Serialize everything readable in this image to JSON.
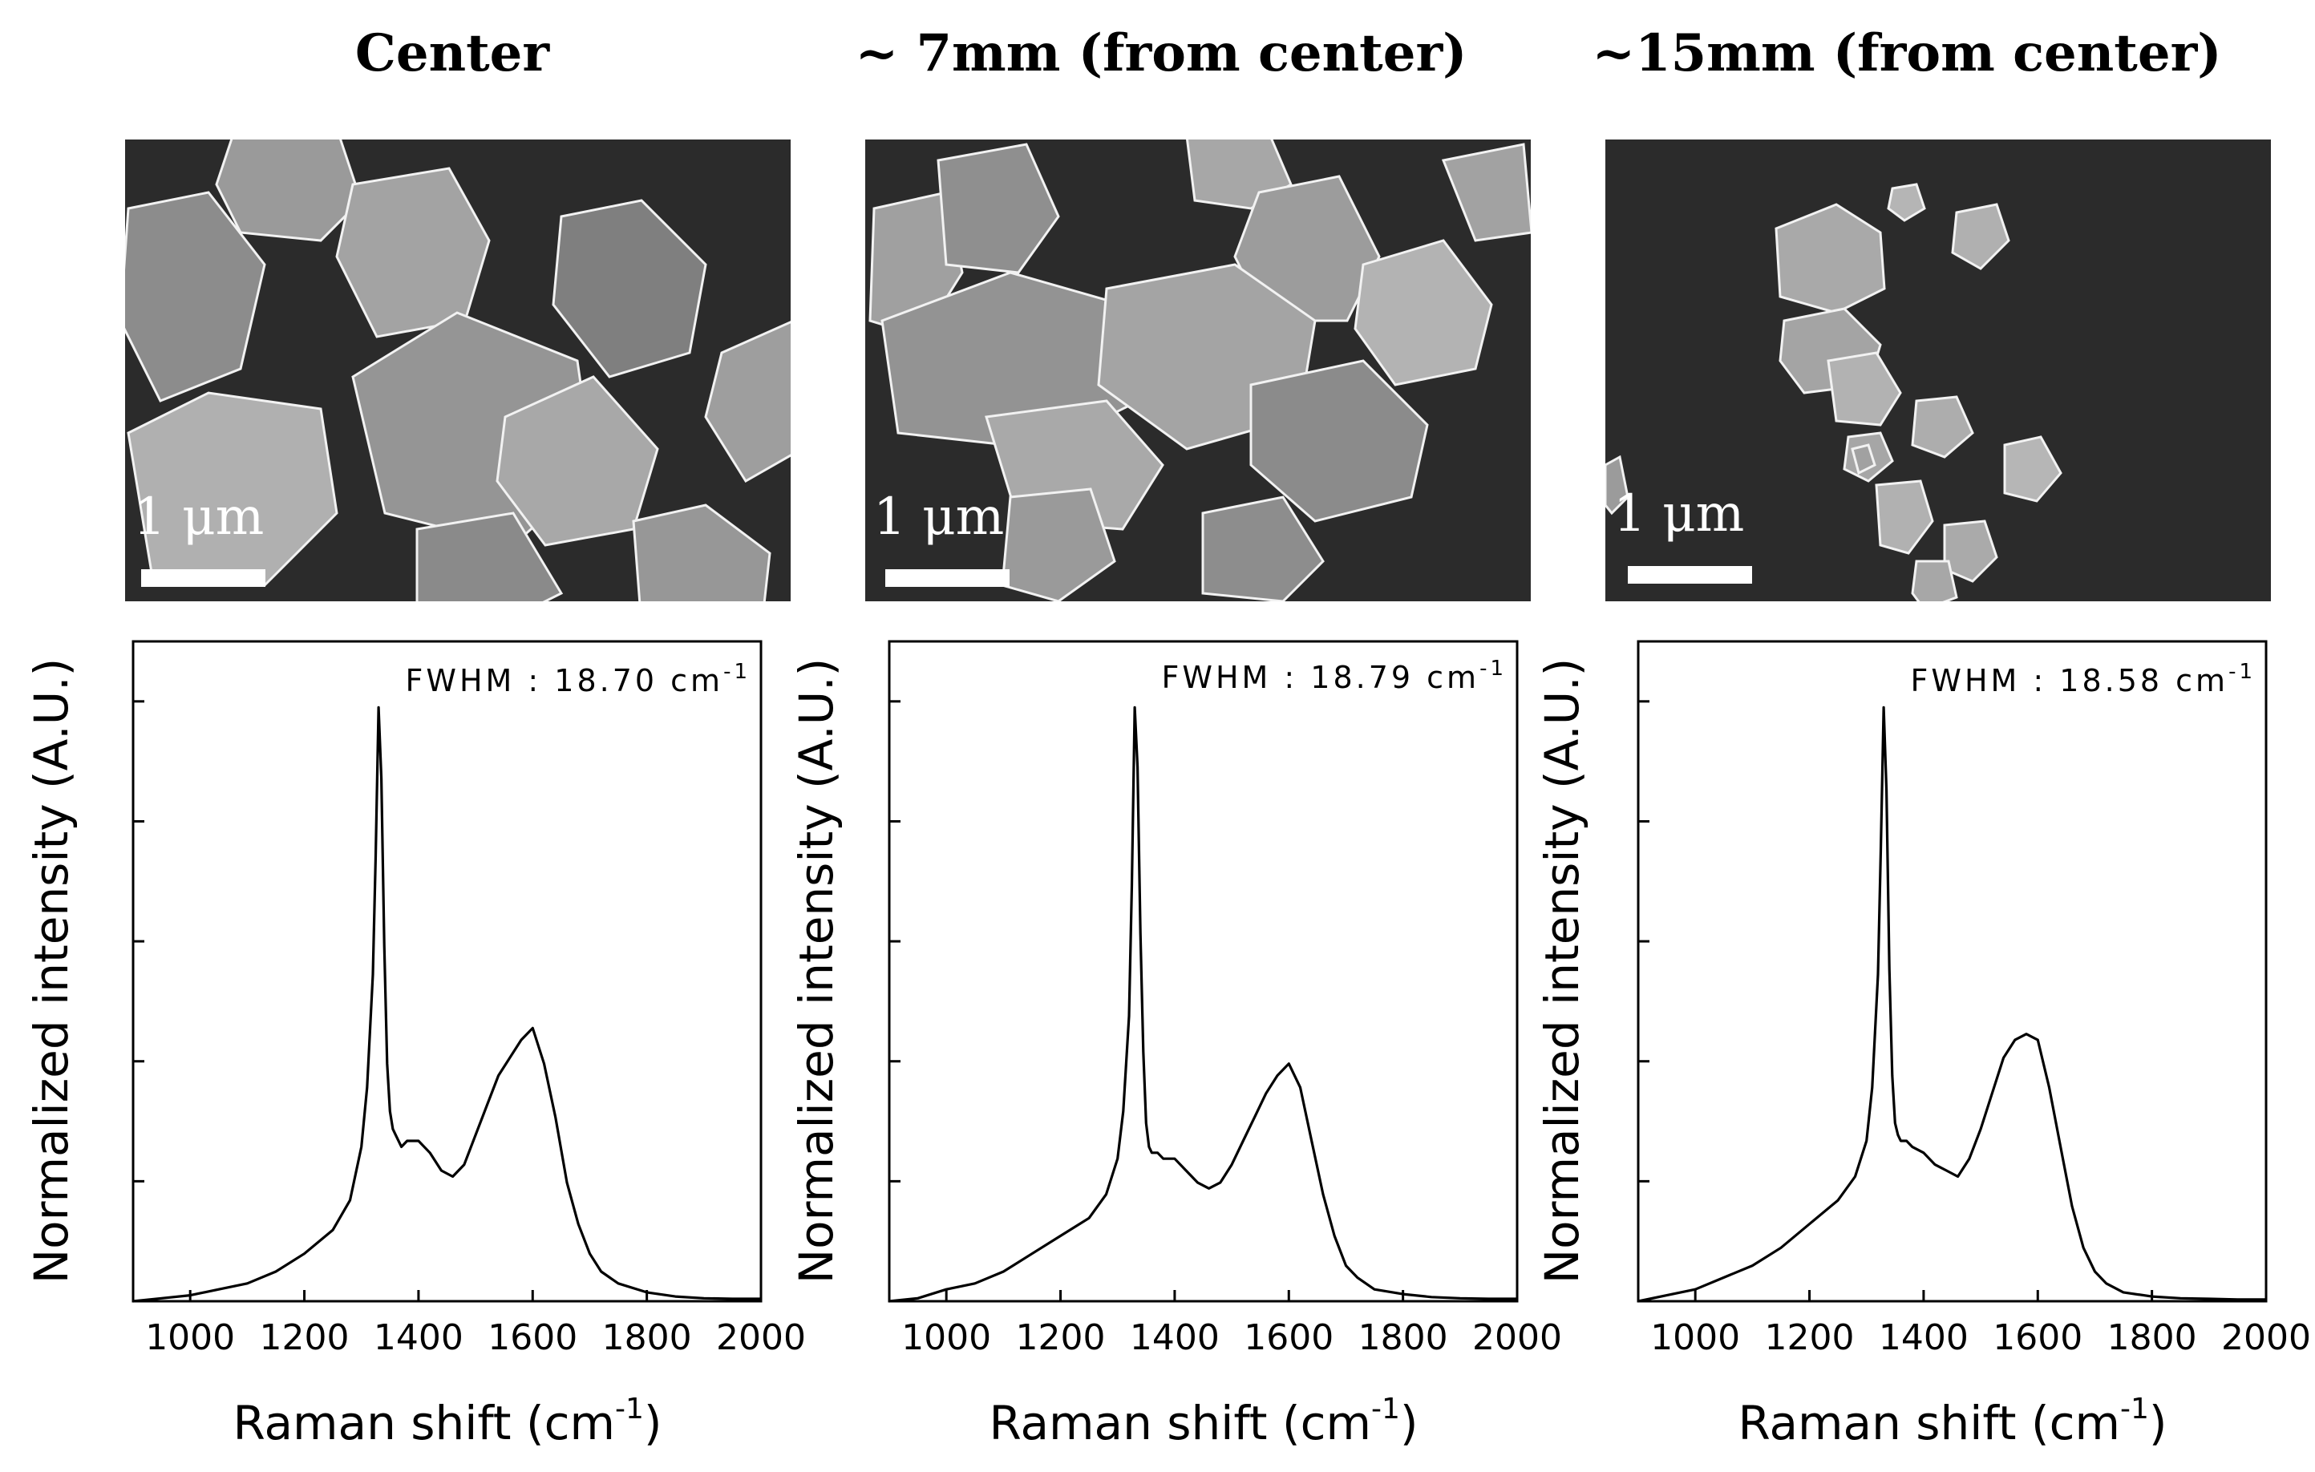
{
  "chart_data": [
    {
      "type": "line",
      "title": "Center",
      "scale_bar_label": "1 μm",
      "annotation": "FWHM : 18.70 cm",
      "annotation_sup": "-1",
      "xlabel": "Raman shift (cm",
      "xlabel_sup": "-1",
      "xlabel_close": ")",
      "ylabel": "Normalized intensity (A.U.)",
      "xlim": [
        900,
        2000
      ],
      "ylim": [
        0,
        1.0
      ],
      "xticks": [
        1000,
        1200,
        1400,
        1600,
        1800,
        2000
      ],
      "series": [
        {
          "x": [
            900,
            950,
            1000,
            1050,
            1100,
            1150,
            1200,
            1250,
            1280,
            1300,
            1310,
            1320,
            1325,
            1330,
            1335,
            1340,
            1345,
            1350,
            1355,
            1360,
            1370,
            1380,
            1400,
            1420,
            1440,
            1460,
            1480,
            1500,
            1520,
            1540,
            1560,
            1580,
            1600,
            1620,
            1640,
            1660,
            1680,
            1700,
            1720,
            1750,
            1800,
            1850,
            1900,
            1950,
            2000
          ],
          "y": [
            0.0,
            0.005,
            0.01,
            0.02,
            0.03,
            0.05,
            0.08,
            0.12,
            0.17,
            0.26,
            0.36,
            0.55,
            0.75,
            1.0,
            0.88,
            0.6,
            0.4,
            0.32,
            0.29,
            0.28,
            0.26,
            0.27,
            0.27,
            0.25,
            0.22,
            0.21,
            0.23,
            0.28,
            0.33,
            0.38,
            0.41,
            0.44,
            0.46,
            0.4,
            0.31,
            0.2,
            0.13,
            0.08,
            0.05,
            0.03,
            0.015,
            0.008,
            0.005,
            0.004,
            0.004
          ]
        }
      ]
    },
    {
      "type": "line",
      "title": "~ 7mm (from center)",
      "scale_bar_label": "1 μm",
      "annotation": "FWHM : 18.79 cm",
      "annotation_sup": "-1",
      "xlabel": "Raman shift (cm",
      "xlabel_sup": "-1",
      "xlabel_close": ")",
      "ylabel": "Normalized intensity (A.U.)",
      "xlim": [
        900,
        2000
      ],
      "ylim": [
        0,
        1.0
      ],
      "xticks": [
        1000,
        1200,
        1400,
        1600,
        1800,
        2000
      ],
      "series": [
        {
          "x": [
            900,
            950,
            1000,
            1050,
            1100,
            1150,
            1200,
            1250,
            1280,
            1300,
            1310,
            1320,
            1325,
            1330,
            1335,
            1340,
            1345,
            1350,
            1355,
            1360,
            1370,
            1380,
            1400,
            1420,
            1440,
            1460,
            1480,
            1500,
            1520,
            1540,
            1560,
            1580,
            1600,
            1620,
            1640,
            1660,
            1680,
            1700,
            1720,
            1750,
            1800,
            1850,
            1900,
            1950,
            2000
          ],
          "y": [
            0.0,
            0.005,
            0.02,
            0.03,
            0.05,
            0.08,
            0.11,
            0.14,
            0.18,
            0.24,
            0.32,
            0.48,
            0.7,
            1.0,
            0.9,
            0.62,
            0.42,
            0.3,
            0.26,
            0.25,
            0.25,
            0.24,
            0.24,
            0.22,
            0.2,
            0.19,
            0.2,
            0.23,
            0.27,
            0.31,
            0.35,
            0.38,
            0.4,
            0.36,
            0.27,
            0.18,
            0.11,
            0.06,
            0.04,
            0.02,
            0.012,
            0.007,
            0.005,
            0.004,
            0.004
          ]
        }
      ]
    },
    {
      "type": "line",
      "title": "~15mm (from center)",
      "scale_bar_label": "1 μm",
      "annotation": "FWHM : 18.58 cm",
      "annotation_sup": "-1",
      "xlabel": "Raman shift (cm",
      "xlabel_sup": "-1",
      "xlabel_close": ")",
      "ylabel": "Normalized intensity (A.U.)",
      "xlim": [
        900,
        2000
      ],
      "ylim": [
        0,
        1.0
      ],
      "xticks": [
        1000,
        1200,
        1400,
        1600,
        1800,
        2000
      ],
      "series": [
        {
          "x": [
            900,
            950,
            1000,
            1050,
            1100,
            1150,
            1200,
            1250,
            1280,
            1300,
            1310,
            1320,
            1325,
            1330,
            1335,
            1340,
            1345,
            1350,
            1355,
            1360,
            1370,
            1380,
            1400,
            1420,
            1440,
            1460,
            1480,
            1500,
            1520,
            1540,
            1560,
            1580,
            1600,
            1620,
            1640,
            1660,
            1680,
            1700,
            1720,
            1750,
            1800,
            1850,
            1900,
            1950,
            2000
          ],
          "y": [
            0.0,
            0.01,
            0.02,
            0.04,
            0.06,
            0.09,
            0.13,
            0.17,
            0.21,
            0.27,
            0.36,
            0.55,
            0.76,
            1.0,
            0.86,
            0.56,
            0.38,
            0.3,
            0.28,
            0.27,
            0.27,
            0.26,
            0.25,
            0.23,
            0.22,
            0.21,
            0.24,
            0.29,
            0.35,
            0.41,
            0.44,
            0.45,
            0.44,
            0.36,
            0.26,
            0.16,
            0.09,
            0.05,
            0.03,
            0.015,
            0.008,
            0.005,
            0.004,
            0.003,
            0.003
          ]
        }
      ]
    }
  ]
}
